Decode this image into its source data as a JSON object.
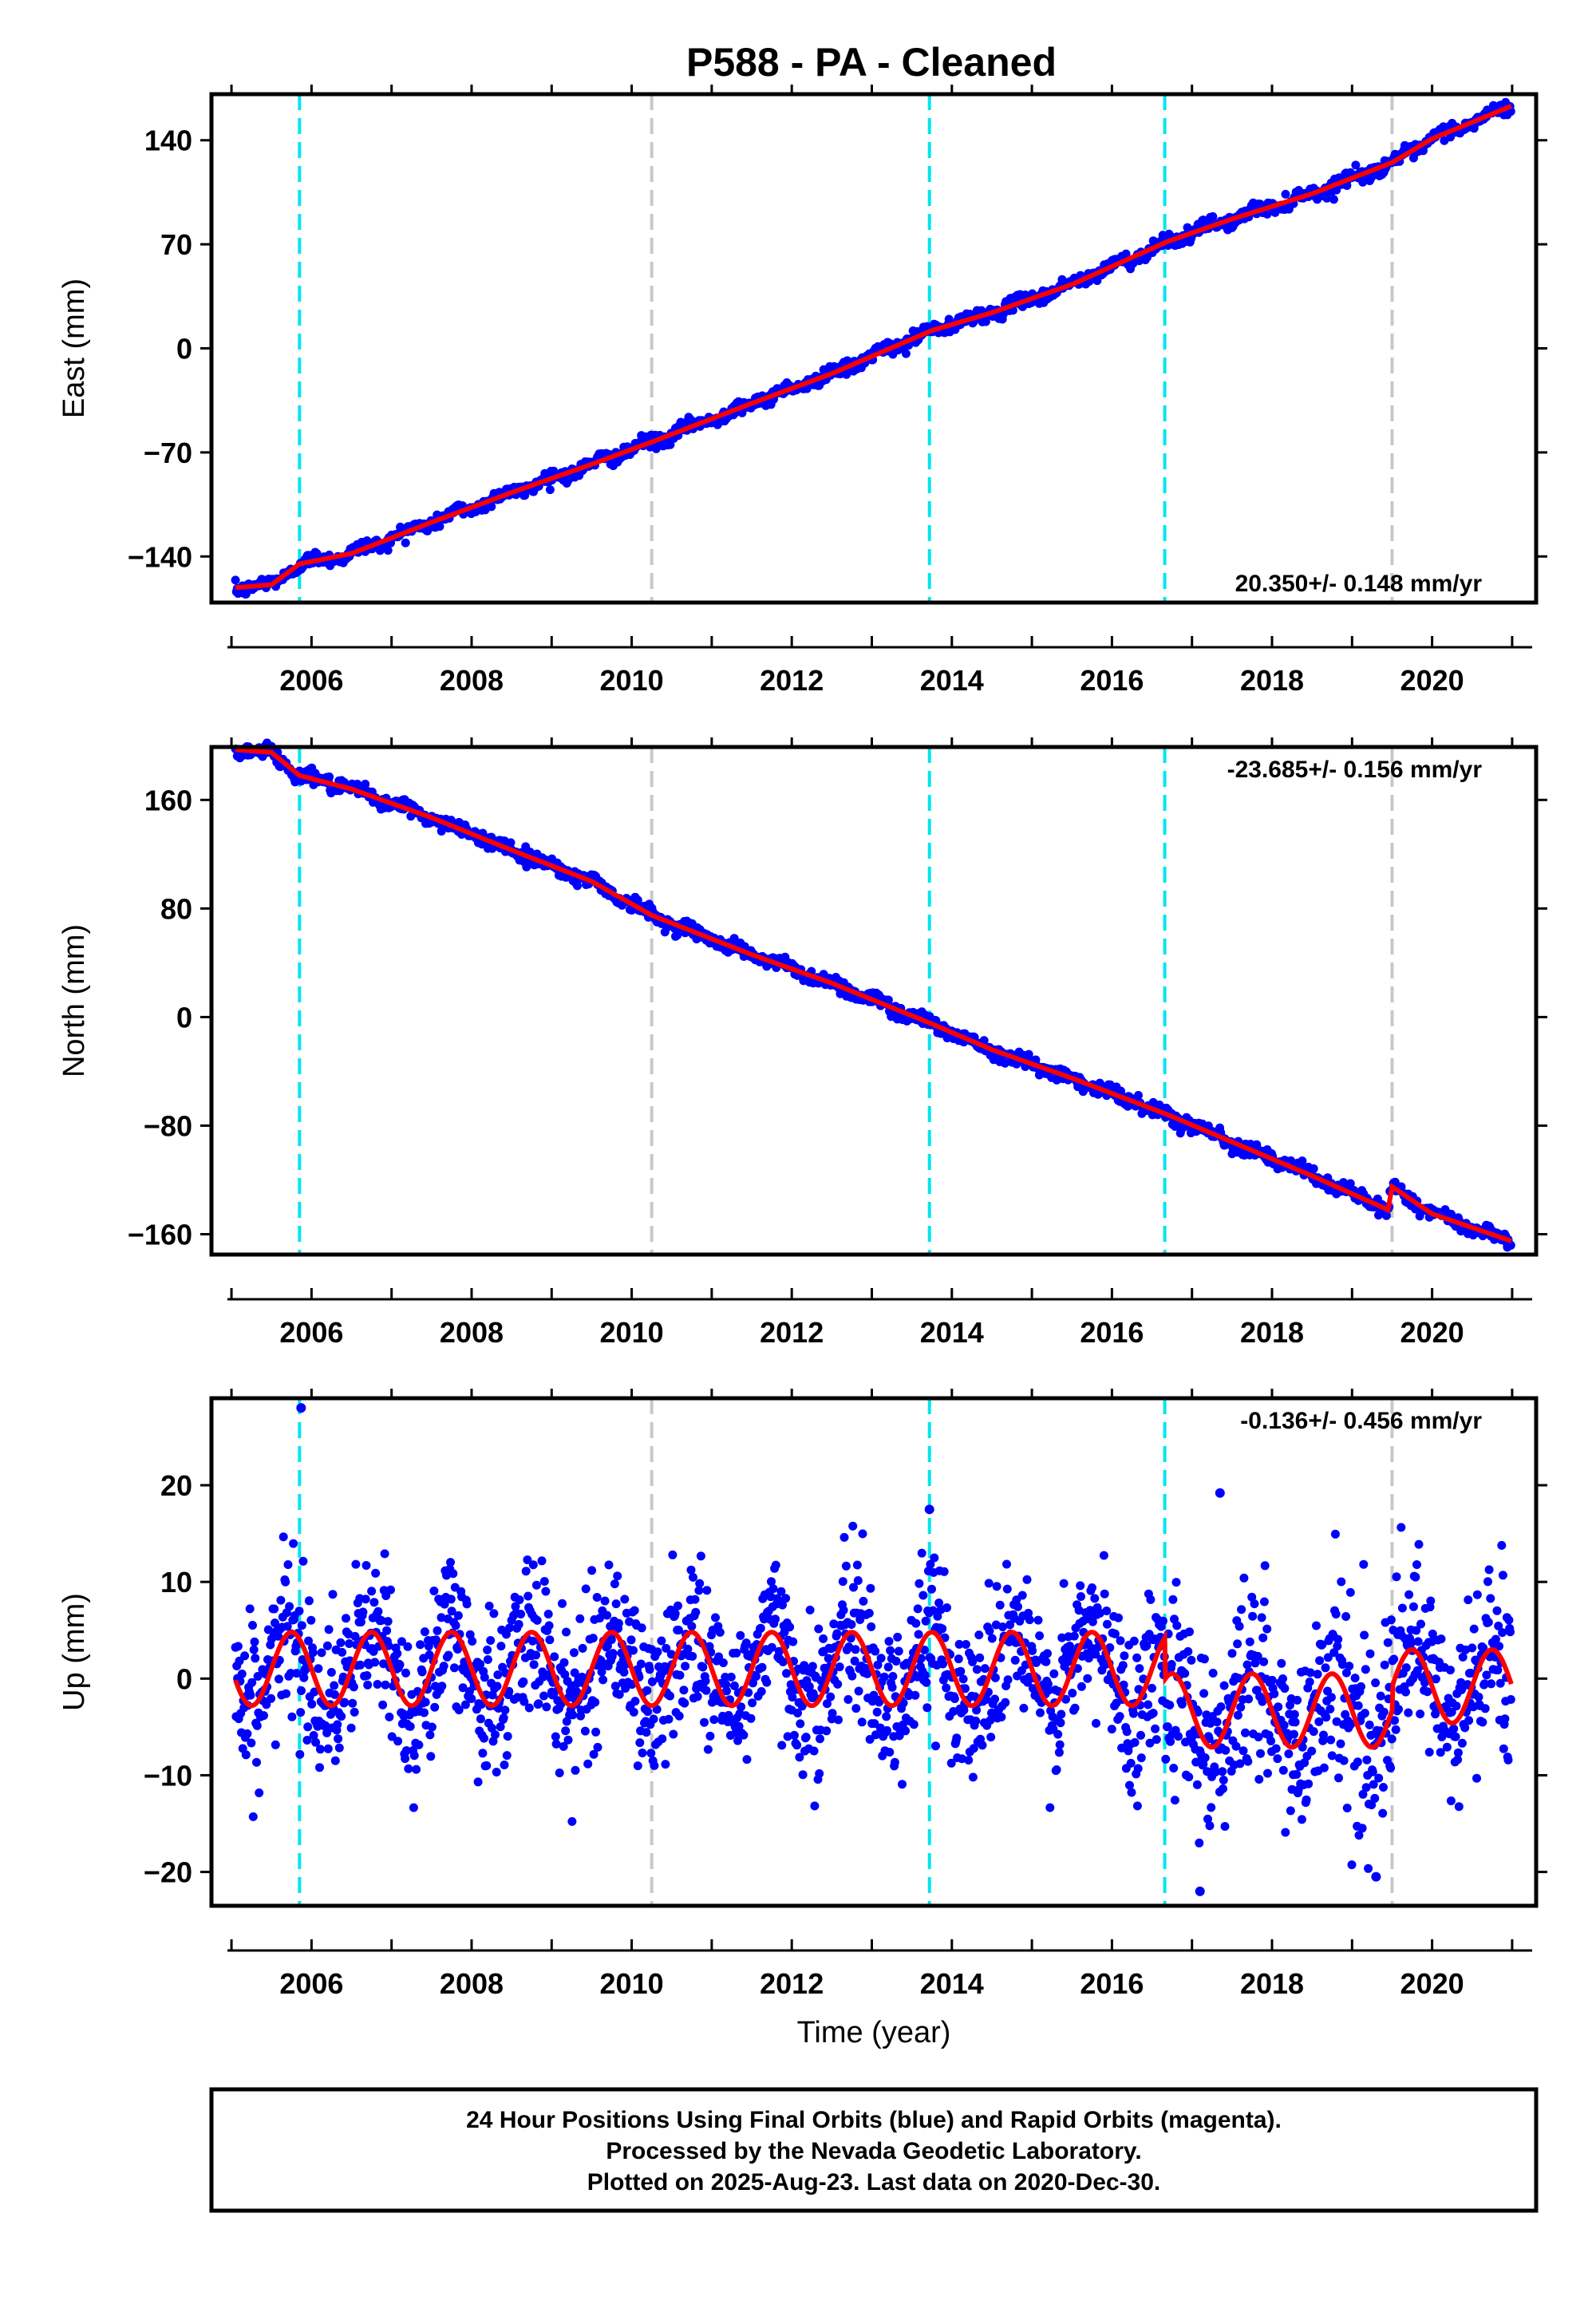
{
  "title": "P588  - PA - Cleaned",
  "footer": {
    "line1": "24 Hour Positions Using Final Orbits (blue) and Rapid Orbits (magenta).",
    "line2": "Processed by the Nevada Geodetic Laboratory.",
    "line3": "Plotted on 2025-Aug-23. Last data on 2020-Dec-30."
  },
  "colors": {
    "data": "#0000ff",
    "model": "#ff0000",
    "event_cyan": "#00e5ee",
    "event_gray": "#c8c8c8",
    "frame": "#000000"
  },
  "chart_data": [
    {
      "type": "scatter",
      "name": "East",
      "ylabel": "East (mm)",
      "xlabel": "",
      "rate_label": "20.350+/- 0.148 mm/yr",
      "rate_position": "bottom-right",
      "xlim": [
        2004.75,
        2021.3
      ],
      "ylim": [
        -171,
        171
      ],
      "yticks": [
        -140,
        -70,
        0,
        70,
        140
      ],
      "xticks": [
        2006,
        2008,
        2010,
        2012,
        2014,
        2016,
        2018,
        2020
      ],
      "time_start": 2005.05,
      "time_end": 2020.99,
      "model_points": [
        [
          2005.05,
          -161
        ],
        [
          2005.5,
          -159
        ],
        [
          2005.85,
          -145
        ],
        [
          2006.5,
          -138
        ],
        [
          2007.5,
          -117
        ],
        [
          2008.5,
          -97
        ],
        [
          2009.5,
          -78
        ],
        [
          2010.25,
          -63
        ],
        [
          2011.5,
          -37
        ],
        [
          2012.5,
          -17
        ],
        [
          2013.75,
          12
        ],
        [
          2014.5,
          24
        ],
        [
          2015.5,
          43
        ],
        [
          2016.7,
          72
        ],
        [
          2017.5,
          87
        ],
        [
          2018.5,
          104
        ],
        [
          2019.5,
          125
        ],
        [
          2020.0,
          141
        ],
        [
          2020.99,
          163
        ]
      ],
      "event_lines": [
        {
          "x": 2005.85,
          "color": "cyan"
        },
        {
          "x": 2010.25,
          "color": "gray"
        },
        {
          "x": 2013.72,
          "color": "cyan"
        },
        {
          "x": 2016.66,
          "color": "cyan"
        },
        {
          "x": 2019.5,
          "color": "gray"
        }
      ],
      "scatter_mm": 2.2
    },
    {
      "type": "scatter",
      "name": "North",
      "ylabel": "North (mm)",
      "xlabel": "",
      "rate_label": "-23.685+/- 0.156 mm/yr",
      "rate_position": "top-right",
      "xlim": [
        2004.75,
        2021.3
      ],
      "ylim": [
        -175,
        199
      ],
      "yticks": [
        -160,
        -80,
        0,
        80,
        160
      ],
      "xticks": [
        2006,
        2008,
        2010,
        2012,
        2014,
        2016,
        2018,
        2020
      ],
      "time_start": 2005.05,
      "time_end": 2020.99,
      "model_points": [
        [
          2005.05,
          197
        ],
        [
          2005.5,
          195
        ],
        [
          2005.85,
          178
        ],
        [
          2006.5,
          168
        ],
        [
          2007.5,
          147
        ],
        [
          2008.5,
          123
        ],
        [
          2009.5,
          100
        ],
        [
          2010.25,
          75
        ],
        [
          2011.5,
          46
        ],
        [
          2012.5,
          25
        ],
        [
          2013.75,
          -5
        ],
        [
          2014.5,
          -24
        ],
        [
          2015.5,
          -45
        ],
        [
          2016.7,
          -72
        ],
        [
          2017.5,
          -92
        ],
        [
          2018.5,
          -117
        ],
        [
          2019.45,
          -142
        ],
        [
          2019.5,
          -125
        ],
        [
          2020.0,
          -145
        ],
        [
          2020.99,
          -165
        ]
      ],
      "event_lines": [
        {
          "x": 2005.85,
          "color": "cyan"
        },
        {
          "x": 2010.25,
          "color": "gray"
        },
        {
          "x": 2013.72,
          "color": "cyan"
        },
        {
          "x": 2016.66,
          "color": "cyan"
        },
        {
          "x": 2019.5,
          "color": "gray"
        }
      ],
      "scatter_mm": 2.5
    },
    {
      "type": "scatter",
      "name": "Up",
      "ylabel": "Up (mm)",
      "xlabel": "Time (year)",
      "rate_label": "-0.136+/- 0.456 mm/yr",
      "rate_position": "top-right",
      "xlim": [
        2004.75,
        2021.3
      ],
      "ylim": [
        -23.5,
        29
      ],
      "yticks": [
        -20,
        -10,
        0,
        10,
        20
      ],
      "xticks": [
        2006,
        2008,
        2010,
        2012,
        2014,
        2016,
        2018,
        2020
      ],
      "time_start": 2005.05,
      "time_end": 2020.99,
      "seasonal_amplitude_mm": 3.8,
      "seasonal_peak_phase_year": 0.75,
      "offsets": [
        {
          "from": 2005.05,
          "to": 2016.66,
          "mean": 1.0
        },
        {
          "from": 2016.66,
          "to": 2019.5,
          "mean": -3.3
        },
        {
          "from": 2019.5,
          "to": 2020.99,
          "mean": -0.8
        }
      ],
      "outliers": [
        [
          2005.87,
          28
        ],
        [
          2013.72,
          17.5
        ],
        [
          2017.35,
          19.2
        ],
        [
          2017.1,
          -22
        ],
        [
          2019.3,
          -20.5
        ]
      ],
      "event_lines": [
        {
          "x": 2005.85,
          "color": "cyan"
        },
        {
          "x": 2010.25,
          "color": "gray"
        },
        {
          "x": 2013.72,
          "color": "cyan"
        },
        {
          "x": 2016.66,
          "color": "cyan"
        },
        {
          "x": 2019.5,
          "color": "gray"
        }
      ],
      "scatter_mm": 4.0
    }
  ]
}
